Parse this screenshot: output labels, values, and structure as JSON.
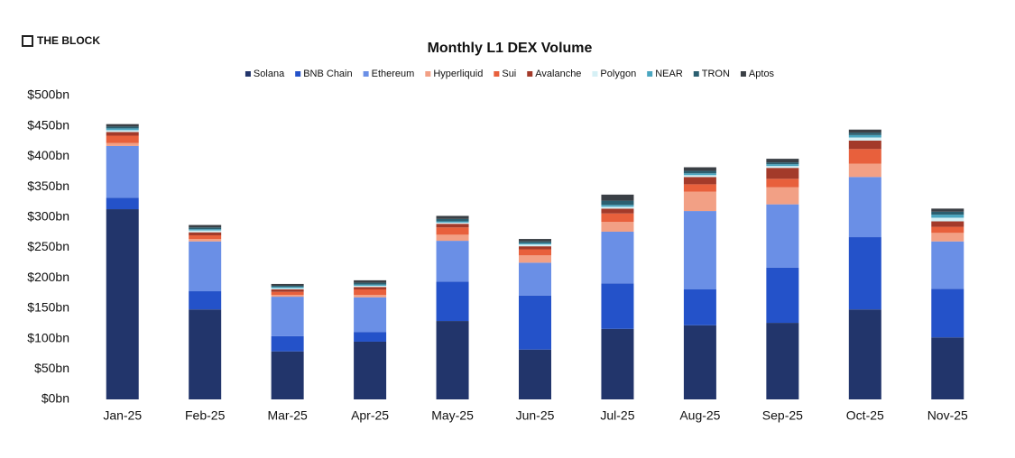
{
  "brand": "THE BLOCK",
  "chart_data": {
    "type": "stacked_bar",
    "title": "Monthly L1 DEX Volume",
    "categories": [
      "Jan-25",
      "Feb-25",
      "Mar-25",
      "Apr-25",
      "May-25",
      "Jun-25",
      "Jul-25",
      "Aug-25",
      "Sep-25",
      "Oct-25",
      "Nov-25"
    ],
    "series": [
      {
        "name": "Solana",
        "color": "#22356b",
        "values": [
          313,
          148,
          79,
          95,
          129,
          82,
          116,
          122,
          126,
          148,
          102
        ]
      },
      {
        "name": "BNB Chain",
        "color": "#2452c9",
        "values": [
          19,
          30,
          25,
          16,
          65,
          89,
          75,
          59,
          91,
          119,
          80
        ]
      },
      {
        "name": "Ethereum",
        "color": "#6a8fe6",
        "values": [
          85,
          82,
          65,
          57,
          67,
          54,
          85,
          129,
          104,
          99,
          78
        ]
      },
      {
        "name": "Hyperliquid",
        "color": "#f2a085",
        "values": [
          5,
          4,
          3,
          4,
          10,
          12,
          16,
          32,
          28,
          22,
          14
        ]
      },
      {
        "name": "Sui",
        "color": "#e8603c",
        "values": [
          12,
          6,
          5,
          9,
          12,
          10,
          14,
          12,
          14,
          24,
          10
        ]
      },
      {
        "name": "Avalanche",
        "color": "#a33a2a",
        "values": [
          6,
          5,
          4,
          4,
          6,
          5,
          8,
          12,
          18,
          14,
          9
        ]
      },
      {
        "name": "Polygon",
        "color": "#d6f0f5",
        "values": [
          3,
          3,
          2,
          2,
          2,
          3,
          3,
          3,
          3,
          5,
          6
        ]
      },
      {
        "name": "NEAR",
        "color": "#4aa6c0",
        "values": [
          3,
          2,
          2,
          2,
          2,
          2,
          3,
          3,
          3,
          4,
          5
        ]
      },
      {
        "name": "TRON",
        "color": "#2b5f70",
        "values": [
          3,
          3,
          2,
          3,
          4,
          3,
          7,
          4,
          3,
          4,
          5
        ]
      },
      {
        "name": "Aptos",
        "color": "#3a3f45",
        "values": [
          4,
          4,
          3,
          4,
          5,
          4,
          10,
          6,
          6,
          5,
          5
        ]
      }
    ],
    "ylim": [
      0,
      500
    ],
    "yticks": [
      {
        "value": 0,
        "label": "$0bn"
      },
      {
        "value": 50,
        "label": "$50bn"
      },
      {
        "value": 100,
        "label": "$100bn"
      },
      {
        "value": 150,
        "label": "$150bn"
      },
      {
        "value": 200,
        "label": "$200bn"
      },
      {
        "value": 250,
        "label": "$250bn"
      },
      {
        "value": 300,
        "label": "$300bn"
      },
      {
        "value": 350,
        "label": "$350bn"
      },
      {
        "value": 400,
        "label": "$400bn"
      },
      {
        "value": 450,
        "label": "$450bn"
      },
      {
        "value": 500,
        "label": "$500bn"
      }
    ],
    "legend": "top"
  }
}
